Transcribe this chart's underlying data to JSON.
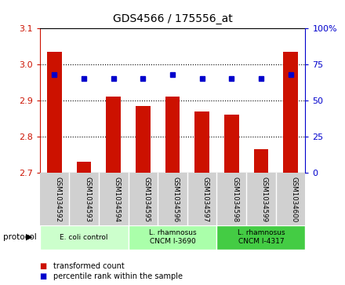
{
  "title": "GDS4566 / 175556_at",
  "samples": [
    "GSM1034592",
    "GSM1034593",
    "GSM1034594",
    "GSM1034595",
    "GSM1034596",
    "GSM1034597",
    "GSM1034598",
    "GSM1034599",
    "GSM1034600"
  ],
  "transformed_counts": [
    3.035,
    2.73,
    2.91,
    2.885,
    2.91,
    2.87,
    2.86,
    2.765,
    3.035
  ],
  "percentile_ranks": [
    68,
    65,
    65,
    65,
    68,
    65,
    65,
    65,
    68
  ],
  "ylim_left": [
    2.7,
    3.1
  ],
  "ylim_right": [
    0,
    100
  ],
  "yticks_left": [
    2.7,
    2.8,
    2.9,
    3.0,
    3.1
  ],
  "yticks_right": [
    0,
    25,
    50,
    75,
    100
  ],
  "bar_color": "#cc1100",
  "dot_color": "#0000cc",
  "bg_color": "#ffffff",
  "group_spans": [
    {
      "start": 0,
      "end": 2,
      "label": "E. coli control",
      "color": "#ccffcc"
    },
    {
      "start": 3,
      "end": 5,
      "label": "L. rhamnosus\nCNCM I-3690",
      "color": "#aaffaa"
    },
    {
      "start": 6,
      "end": 8,
      "label": "L. rhamnosus\nCNCM I-4317",
      "color": "#44cc44"
    }
  ],
  "legend_bar_label": "transformed count",
  "legend_dot_label": "percentile rank within the sample",
  "bar_width": 0.5,
  "base_value": 2.7,
  "title_fontsize": 10,
  "axis_fontsize": 8,
  "tick_label_color_left": "#cc1100",
  "tick_label_color_right": "#0000cc"
}
